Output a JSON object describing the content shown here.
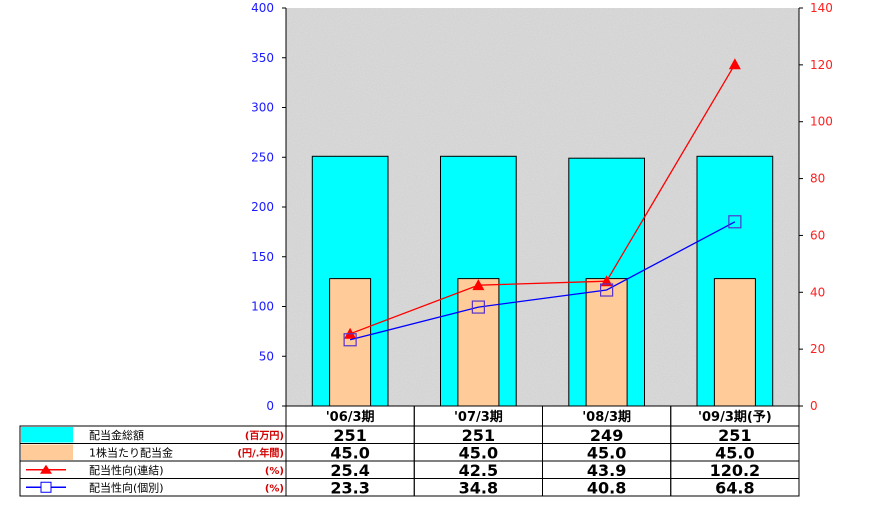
{
  "chart_data": {
    "type": "bar",
    "categories": [
      "'06/3期",
      "'07/3期",
      "'08/3期",
      "'09/3期(予)"
    ],
    "series": [
      {
        "name": "配当金総額",
        "unit": "(百万円)",
        "type": "bar",
        "axis": "left",
        "color": "#00ffff",
        "values": [
          251,
          251,
          249,
          251
        ],
        "labels": [
          "251",
          "251",
          "249",
          "251"
        ]
      },
      {
        "name": "1株当たり配当金",
        "unit": "(円/.年間)",
        "type": "bar",
        "axis": "left",
        "color": "#ffcc99",
        "values": [
          45.0,
          45.0,
          45.0,
          45.0
        ],
        "labels": [
          "45.0",
          "45.0",
          "45.0",
          "45.0"
        ]
      },
      {
        "name": "配当性向(連結)",
        "unit": "(%)",
        "type": "line",
        "marker": "triangle",
        "axis": "right",
        "color": "#ff0000",
        "values": [
          25.4,
          42.5,
          43.9,
          120.2
        ],
        "labels": [
          "25.4",
          "42.5",
          "43.9",
          "120.2"
        ]
      },
      {
        "name": "配当性向(個別)",
        "unit": "(%)",
        "type": "line",
        "marker": "square",
        "axis": "right",
        "color": "#0000ff",
        "values": [
          23.3,
          34.8,
          40.8,
          64.8
        ],
        "labels": [
          "23.3",
          "34.8",
          "40.8",
          "64.8"
        ]
      }
    ],
    "y_left": {
      "min": 0,
      "max": 400,
      "ticks": [
        "0",
        "50",
        "100",
        "150",
        "200",
        "250",
        "300",
        "350",
        "400"
      ]
    },
    "y_right": {
      "min": 0,
      "max": 140,
      "ticks": [
        "0",
        "20",
        "40",
        "60",
        "80",
        "100",
        "120",
        "140"
      ]
    },
    "grid": false,
    "legend": "bottom-left data table"
  }
}
